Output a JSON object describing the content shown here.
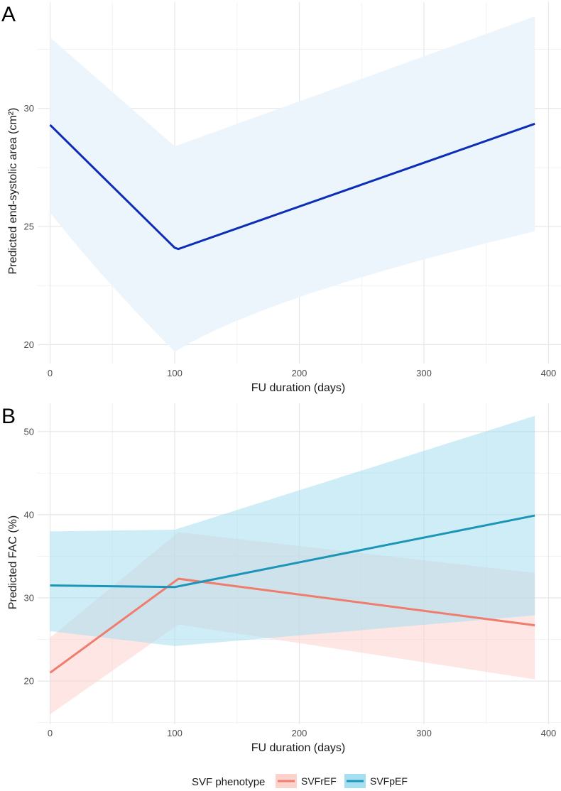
{
  "chart_data": [
    {
      "panel": "A",
      "type": "line",
      "xlabel": "FU duration (days)",
      "ylabel": "Predicted end-systolic area (cm²)",
      "xlim": [
        -10,
        410
      ],
      "ylim": [
        19.2,
        34.5
      ],
      "xticks": [
        0,
        100,
        200,
        300,
        400
      ],
      "xtick_labels": [
        "0",
        "100",
        "200",
        "300",
        "400"
      ],
      "yticks": [
        20,
        25,
        30
      ],
      "ytick_labels": [
        "20",
        "25",
        "30"
      ],
      "grid": true,
      "series": [
        {
          "name": "end-systolic area",
          "color": "#0b2db8",
          "band_color": "#ecf5fb",
          "x": [
            0,
            100,
            103,
            389
          ],
          "y": [
            29.3,
            24.1,
            24.05,
            29.35
          ],
          "ci_lower": [
            25.6,
            19.7,
            19.8,
            24.8
          ],
          "ci_upper": [
            33.0,
            28.4,
            28.45,
            33.9
          ],
          "ci_curve": "upper_linear_lower_curved"
        }
      ]
    },
    {
      "panel": "B",
      "type": "line",
      "xlabel": "FU duration (days)",
      "ylabel": "Predicted FAC (%)",
      "xlim": [
        -10,
        410
      ],
      "ylim": [
        14.8,
        53.4
      ],
      "xticks": [
        0,
        100,
        200,
        300,
        400
      ],
      "xtick_labels": [
        "0",
        "100",
        "200",
        "300",
        "400"
      ],
      "yticks": [
        20,
        30,
        40,
        50
      ],
      "ytick_labels": [
        "20",
        "30",
        "40",
        "50"
      ],
      "grid": true,
      "legend_position": "bottom",
      "legend_title": "SVF phenotype",
      "series": [
        {
          "name": "SVFrEF",
          "color": "#f07c6e",
          "band_color": "#fcd2cd",
          "x": [
            0,
            103,
            389
          ],
          "y": [
            21.0,
            32.3,
            26.7
          ],
          "ci_lower": [
            16.0,
            26.8,
            20.2
          ],
          "ci_upper": [
            25.2,
            37.9,
            33.0
          ]
        },
        {
          "name": "SVFpEF",
          "color": "#1b95b8",
          "band_color": "#a5dff0",
          "x": [
            0,
            100,
            389
          ],
          "y": [
            31.5,
            31.3,
            39.9
          ],
          "ci_lower": [
            26.0,
            24.2,
            27.9
          ],
          "ci_upper": [
            38.0,
            38.2,
            51.9
          ]
        }
      ]
    }
  ]
}
